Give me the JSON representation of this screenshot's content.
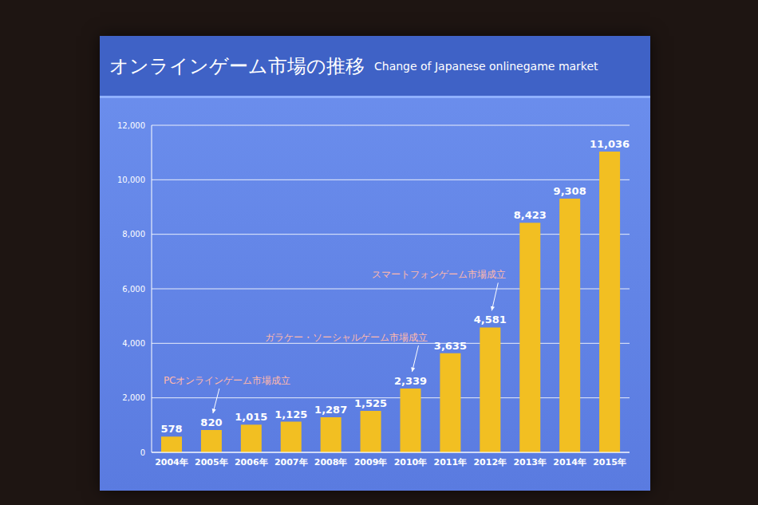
{
  "chart_data": {
    "type": "bar",
    "title": "オンラインゲーム市場の推移",
    "subtitle": "Change of Japanese onlinegame market",
    "categories": [
      "2004年",
      "2005年",
      "2006年",
      "2007年",
      "2008年",
      "2009年",
      "2010年",
      "2011年",
      "2012年",
      "2013年",
      "2014年",
      "2015年"
    ],
    "values": [
      578,
      820,
      1015,
      1125,
      1287,
      1525,
      2339,
      3635,
      4581,
      8423,
      9308,
      11036
    ],
    "value_labels": [
      "578",
      "820",
      "1,015",
      "1,125",
      "1,287",
      "1,525",
      "2,339",
      "3,635",
      "4,581",
      "8,423",
      "9,308",
      "11,036"
    ],
    "color": "#f2bf22",
    "ylim": [
      0,
      12000
    ],
    "yticks": [
      0,
      {
        "value": 2000,
        "label": "2,000"
      },
      {
        "value": 4000,
        "label": "4,000"
      },
      {
        "value": 6000,
        "label": "6,000"
      },
      {
        "value": 8000,
        "label": "8,000"
      },
      {
        "value": 10000,
        "label": "10,000"
      },
      {
        "value": 12000,
        "label": "12,000"
      }
    ],
    "grid": true,
    "data_labels": true,
    "annotations": [
      {
        "text": "PCオンラインゲーム市場成立",
        "category": "2005年"
      },
      {
        "text": "ガラケー・ソーシャルゲーム市場成立",
        "category": "2010年"
      },
      {
        "text": "スマートフォンゲーム市場成立",
        "category": "2012年"
      }
    ]
  }
}
